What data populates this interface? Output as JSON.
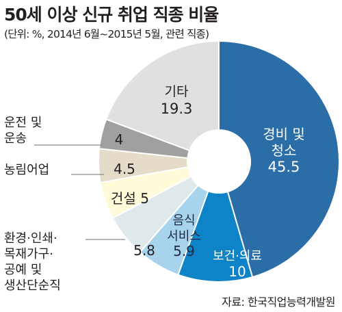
{
  "header": {
    "title": "50세 이상 신규 취업 직종 비율",
    "subtitle": "(단위: %, 2014년 6월~2015년 5월, 관련 직종)"
  },
  "footer": {
    "source": "자료: 한국직업능력개발원"
  },
  "chart_data": {
    "type": "pie",
    "variant": "donut",
    "title": "50세 이상 신규 취업 직종 비율",
    "unit": "%",
    "categories": [
      "경비 및 청소",
      "보건·의료",
      "음식 서비스",
      "환경·인쇄·목재가구·공예 및 생산단순직",
      "건설",
      "농림어업",
      "운전 및 운송",
      "기타"
    ],
    "values": [
      45.5,
      10,
      5.9,
      5.8,
      5,
      4.5,
      4,
      19.3
    ],
    "colors": [
      "#2b6ea7",
      "#0f83c7",
      "#a7d3ec",
      "#dfe9eb",
      "#fffbd9",
      "#e4dcc8",
      "#a0a0a0",
      "#e0e0e0"
    ],
    "value_labels": [
      "45.5",
      "10",
      "5.9",
      "5.8",
      "5",
      "4.5",
      "4",
      "19.3"
    ],
    "slice_labels": [
      [
        "경비 및",
        "청소"
      ],
      [
        "보건·의료"
      ],
      [
        "음식",
        "서비스"
      ],
      [],
      [
        "건설"
      ],
      [],
      [],
      [
        "기타"
      ]
    ],
    "outside_labels": {
      "3": [
        "환경·인쇄·",
        "목재가구·",
        "공예 및",
        "생산단순직"
      ],
      "5": [
        "농림어업"
      ],
      "6": [
        "운전 및",
        "운송"
      ]
    },
    "start_angle_deg": 0,
    "direction": "clockwise"
  }
}
